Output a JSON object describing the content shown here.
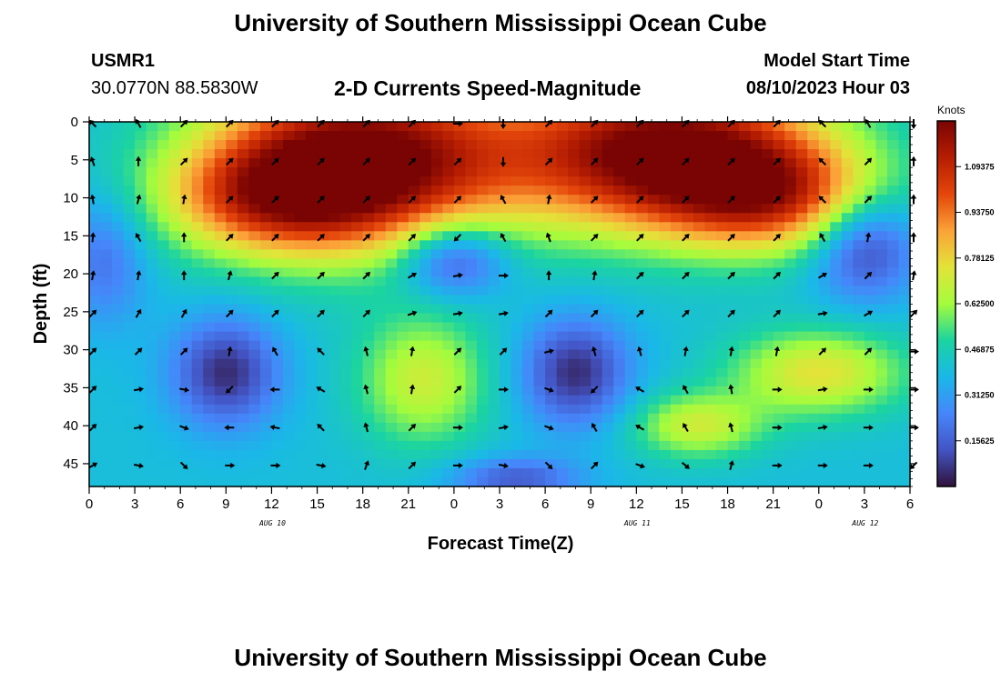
{
  "header": {
    "title": "University of Southern Mississippi Ocean Cube",
    "station": "USMR1",
    "coords": "30.0770N  88.5830W",
    "subtitle": "2-D Currents Speed-Magnitude",
    "model_start_label": "Model Start Time",
    "model_start_value": "08/10/2023 Hour 03"
  },
  "footer": {
    "title": "University of Southern Mississippi Ocean Cube"
  },
  "chart_data": {
    "type": "heatmap",
    "xlabel": "Forecast Time(Z)",
    "ylabel": "Depth (ft)",
    "units_label": "Knots",
    "x_tick_labels": [
      "0",
      "3",
      "6",
      "9",
      "12",
      "15",
      "18",
      "21",
      "0",
      "3",
      "6",
      "9",
      "12",
      "15",
      "18",
      "21",
      "0",
      "3",
      "6"
    ],
    "day_labels": [
      {
        "label": "AUG 10",
        "tick_index": 4
      },
      {
        "label": "AUG 11",
        "tick_index": 12
      },
      {
        "label": "AUG 12",
        "tick_index": 17
      }
    ],
    "y_ticks": [
      0,
      5,
      10,
      15,
      20,
      25,
      30,
      35,
      40,
      45
    ],
    "ylim": [
      0,
      48
    ],
    "time_range_hours": [
      0,
      54
    ],
    "colorbar": {
      "range": [
        0,
        1.25
      ],
      "tick_labels": [
        "1.09375",
        "0.93750",
        "0.78125",
        "0.62500",
        "0.46875",
        "0.31250",
        "0.15625"
      ],
      "tick_values": [
        1.09375,
        0.9375,
        0.78125,
        0.625,
        0.46875,
        0.3125,
        0.15625
      ]
    },
    "speed_field": {
      "background_kn": 0.4,
      "features": [
        {
          "t": 18,
          "d": 5,
          "st": 7,
          "sd": 8,
          "amp": 0.9
        },
        {
          "t": 12,
          "d": 10,
          "st": 5,
          "sd": 5,
          "amp": 0.45
        },
        {
          "t": 38,
          "d": 4,
          "st": 7,
          "sd": 7,
          "amp": 0.9
        },
        {
          "t": 45,
          "d": 10,
          "st": 5,
          "sd": 5,
          "amp": 0.5
        },
        {
          "t": 22,
          "d": 34,
          "st": 3,
          "sd": 6,
          "amp": 0.3
        },
        {
          "t": 40,
          "d": 40,
          "st": 3,
          "sd": 3,
          "amp": 0.3
        },
        {
          "t": 48,
          "d": 33,
          "st": 4,
          "sd": 4,
          "amp": 0.35
        },
        {
          "t": 9,
          "d": 33,
          "st": 2.5,
          "sd": 5,
          "amp": -0.35
        },
        {
          "t": 32,
          "d": 33,
          "st": 2.5,
          "sd": 5,
          "amp": -0.35
        },
        {
          "t": 24,
          "d": 18,
          "st": 2.5,
          "sd": 3.5,
          "amp": -0.35
        },
        {
          "t": 51,
          "d": 16,
          "st": 2.5,
          "sd": 5,
          "amp": -0.35
        },
        {
          "t": 1,
          "d": 18,
          "st": 2,
          "sd": 6,
          "amp": -0.2
        },
        {
          "t": 28,
          "d": 47,
          "st": 3,
          "sd": 2,
          "amp": -0.25
        }
      ]
    },
    "vector_times": [
      0,
      3,
      6,
      9,
      12,
      15,
      18,
      21,
      24,
      27,
      30,
      33,
      36,
      39,
      42,
      45,
      48,
      51,
      54
    ],
    "vector_depths": [
      0,
      5,
      10,
      15,
      20,
      25,
      30,
      35,
      40,
      45
    ],
    "vector_direction_deg": [
      [
        315,
        330,
        45,
        45,
        45,
        45,
        45,
        45,
        90,
        180,
        45,
        45,
        45,
        45,
        45,
        45,
        315,
        330,
        180
      ],
      [
        340,
        0,
        45,
        45,
        45,
        45,
        45,
        45,
        45,
        180,
        45,
        45,
        45,
        45,
        45,
        45,
        315,
        45,
        0
      ],
      [
        350,
        15,
        10,
        45,
        45,
        45,
        45,
        45,
        45,
        330,
        10,
        45,
        45,
        45,
        45,
        45,
        315,
        45,
        0
      ],
      [
        5,
        330,
        0,
        45,
        45,
        45,
        45,
        45,
        225,
        330,
        340,
        45,
        45,
        45,
        45,
        45,
        330,
        10,
        0
      ],
      [
        10,
        10,
        0,
        15,
        45,
        45,
        45,
        60,
        80,
        90,
        0,
        10,
        45,
        45,
        45,
        45,
        60,
        45,
        10
      ],
      [
        45,
        30,
        30,
        45,
        45,
        45,
        45,
        70,
        80,
        80,
        45,
        45,
        45,
        45,
        45,
        45,
        80,
        60,
        45
      ],
      [
        45,
        45,
        45,
        10,
        330,
        315,
        345,
        10,
        45,
        45,
        75,
        345,
        345,
        10,
        10,
        10,
        45,
        45,
        90
      ],
      [
        45,
        80,
        100,
        225,
        270,
        300,
        345,
        10,
        45,
        90,
        110,
        225,
        300,
        330,
        350,
        90,
        80,
        90,
        90
      ],
      [
        45,
        80,
        110,
        270,
        280,
        315,
        345,
        45,
        90,
        80,
        110,
        330,
        300,
        330,
        345,
        90,
        80,
        90,
        90
      ],
      [
        60,
        100,
        135,
        90,
        90,
        100,
        20,
        45,
        90,
        100,
        135,
        45,
        110,
        130,
        15,
        90,
        90,
        90,
        225
      ]
    ]
  }
}
